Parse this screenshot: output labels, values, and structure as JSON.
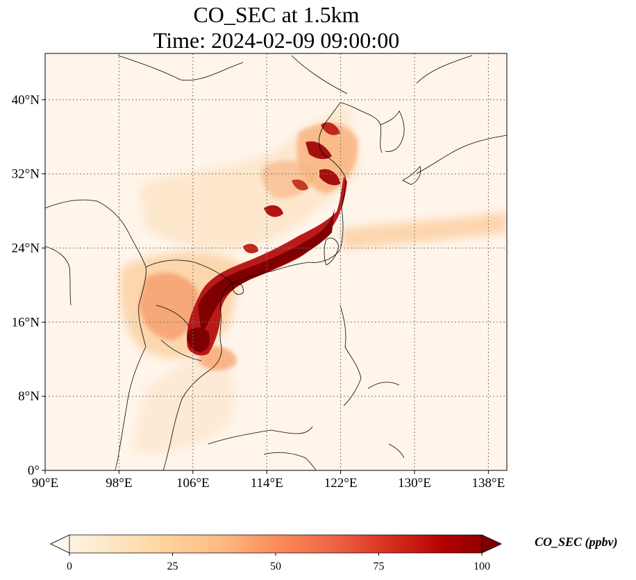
{
  "figure": {
    "title_line1": "CO_SEC at 1.5km",
    "title_line2": "Time: 2024-02-09 09:00:00"
  },
  "map": {
    "extent": {
      "lon": [
        90,
        140
      ],
      "lat": [
        0,
        45
      ]
    },
    "lon_ticks": [
      {
        "value": 90,
        "label": "90°E"
      },
      {
        "value": 98,
        "label": "98°E"
      },
      {
        "value": 106,
        "label": "106°E"
      },
      {
        "value": 114,
        "label": "114°E"
      },
      {
        "value": 122,
        "label": "122°E"
      },
      {
        "value": 130,
        "label": "130°E"
      },
      {
        "value": 138,
        "label": "138°E"
      }
    ],
    "lat_ticks": [
      {
        "value": 0,
        "label": "0°"
      },
      {
        "value": 8,
        "label": "8°N"
      },
      {
        "value": 16,
        "label": "16°N"
      },
      {
        "value": 24,
        "label": "24°N"
      },
      {
        "value": 32,
        "label": "32°N"
      },
      {
        "value": 40,
        "label": "40°N"
      }
    ],
    "gridlines": true,
    "background_color": "#fff5eb",
    "coastline_color": "#000000",
    "gridline_color": "#777777"
  },
  "colorbar": {
    "label": "CO_SEC (ppbv)",
    "colormap": "OrRd",
    "extend": "both",
    "min": 0,
    "max": 100,
    "ticks": [
      {
        "value": 0,
        "label": "0"
      },
      {
        "value": 25,
        "label": "25"
      },
      {
        "value": 50,
        "label": "50"
      },
      {
        "value": 75,
        "label": "75"
      },
      {
        "value": 100,
        "label": "100"
      }
    ],
    "color_stops": [
      "#fff7ec",
      "#fee8c8",
      "#fdd49e",
      "#fdbb84",
      "#fc8d59",
      "#ef6548",
      "#d7301f",
      "#b30000",
      "#7f0000"
    ]
  }
}
